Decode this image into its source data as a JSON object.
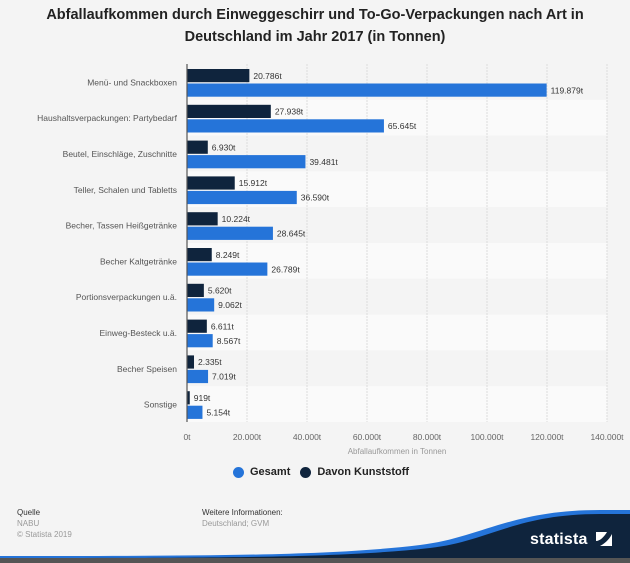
{
  "chart_data": {
    "type": "bar",
    "orientation": "horizontal",
    "title": "Abfallaufkommen durch Einweggeschirr und To-Go-Verpackungen nach Art in Deutschland im Jahr 2017 (in Tonnen)",
    "title_lines": [
      "Abfallaufkommen durch Einweggeschirr und To-Go-Verpackungen nach Art in",
      "Deutschland im Jahr 2017 (in Tonnen)"
    ],
    "xlabel": "Abfallaufkommen in Tonnen",
    "ylabel": "",
    "xlim": [
      0,
      140000
    ],
    "grid": true,
    "legend_position": "bottom",
    "x_ticks": [
      0,
      20000,
      40000,
      60000,
      80000,
      100000,
      120000,
      140000
    ],
    "x_tick_labels": [
      "0t",
      "20.000t",
      "40.000t",
      "60.000t",
      "80.000t",
      "100.000t",
      "120.000t",
      "140.000t"
    ],
    "categories": [
      "Menü- und Snackboxen",
      "Haushaltsverpackungen: Partybedarf",
      "Beutel, Einschläge, Zuschnitte",
      "Teller, Schalen und Tabletts",
      "Becher, Tassen Heißgetränke",
      "Becher Kaltgetränke",
      "Portionsverpackungen u.ä.",
      "Einweg-Besteck u.ä.",
      "Becher Speisen",
      "Sonstige"
    ],
    "series": [
      {
        "name": "Davon Kunststoff",
        "color": "#0f243d",
        "values": [
          20786,
          27938,
          6930,
          15912,
          10224,
          8249,
          5620,
          6611,
          2335,
          919
        ],
        "labels": [
          "20.786t",
          "27.938t",
          "6.930t",
          "15.912t",
          "10.224t",
          "8.249t",
          "5.620t",
          "6.611t",
          "2.335t",
          "919t"
        ]
      },
      {
        "name": "Gesamt",
        "color": "#2574d9",
        "values": [
          119879,
          65645,
          39481,
          36590,
          28645,
          26789,
          9062,
          8567,
          7019,
          5154
        ],
        "labels": [
          "119.879t",
          "65.645t",
          "39.481t",
          "36.590t",
          "28.645t",
          "26.789t",
          "9.062t",
          "8.567t",
          "7.019t",
          "5.154t"
        ]
      }
    ],
    "legend": [
      {
        "name": "Gesamt",
        "color": "#2574d9"
      },
      {
        "name": "Davon Kunststoff",
        "color": "#0f243d"
      }
    ]
  },
  "footer": {
    "source_heading": "Quelle",
    "source": "NABU",
    "copyright": "© Statista 2019",
    "info_heading": "Weitere Informationen:",
    "info": "Deutschland; GVM"
  },
  "logo": {
    "text": "statista",
    "colors": {
      "dark": "#0f243d",
      "accent": "#2574d9"
    }
  }
}
